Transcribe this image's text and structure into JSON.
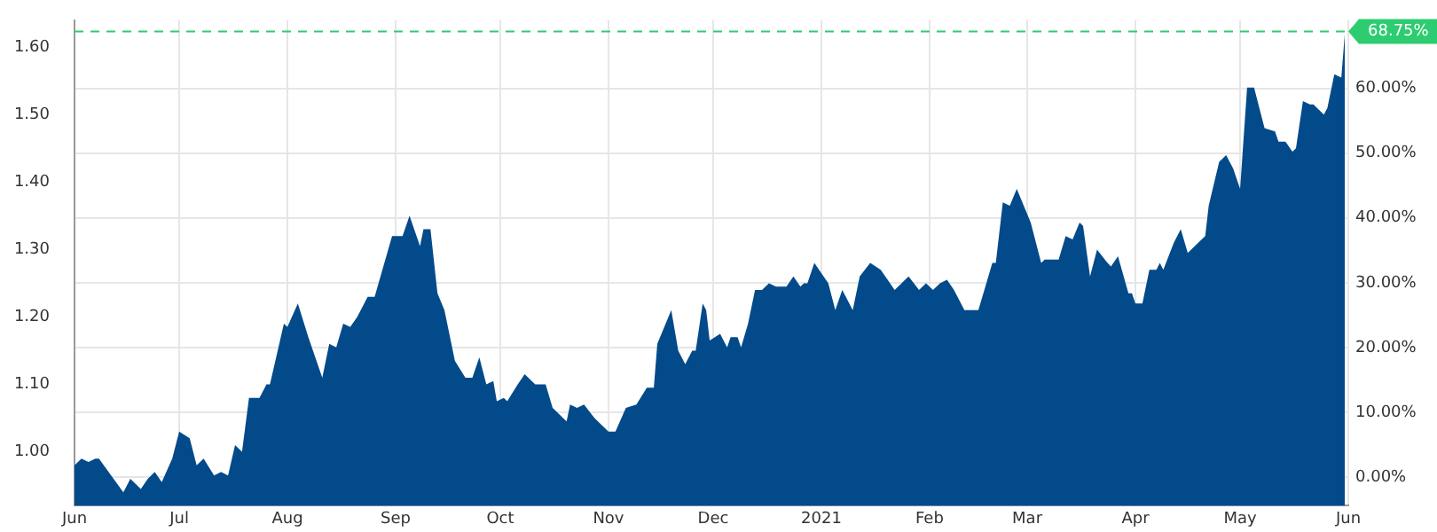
{
  "chart_data": {
    "type": "area",
    "x": [
      "2020-06-01",
      "2020-06-03",
      "2020-06-05",
      "2020-06-07",
      "2020-06-08",
      "2020-06-15",
      "2020-06-17",
      "2020-06-20",
      "2020-06-22",
      "2020-06-24",
      "2020-06-26",
      "2020-06-29",
      "2020-07-01",
      "2020-07-04",
      "2020-07-06",
      "2020-07-08",
      "2020-07-11",
      "2020-07-13",
      "2020-07-15",
      "2020-07-17",
      "2020-07-19",
      "2020-07-21",
      "2020-07-24",
      "2020-07-26",
      "2020-07-27",
      "2020-07-31",
      "2020-08-01",
      "2020-08-04",
      "2020-08-07",
      "2020-08-11",
      "2020-08-13",
      "2020-08-15",
      "2020-08-17",
      "2020-08-19",
      "2020-08-21",
      "2020-08-24",
      "2020-08-26",
      "2020-08-31",
      "2020-09-03",
      "2020-09-05",
      "2020-09-08",
      "2020-09-09",
      "2020-09-11",
      "2020-09-13",
      "2020-09-15",
      "2020-09-18",
      "2020-09-21",
      "2020-09-23",
      "2020-09-25",
      "2020-09-27",
      "2020-09-29",
      "2020-09-30",
      "2020-10-02",
      "2020-10-03",
      "2020-10-06",
      "2020-10-08",
      "2020-10-11",
      "2020-10-14",
      "2020-10-16",
      "2020-10-20",
      "2020-10-21",
      "2020-10-23",
      "2020-10-25",
      "2020-10-28",
      "2020-11-01",
      "2020-11-03",
      "2020-11-06",
      "2020-11-09",
      "2020-11-12",
      "2020-11-14",
      "2020-11-15",
      "2020-11-19",
      "2020-11-21",
      "2020-11-23",
      "2020-11-25",
      "2020-11-26",
      "2020-11-28",
      "2020-11-29",
      "2020-11-30",
      "2020-12-03",
      "2020-12-05",
      "2020-12-06",
      "2020-12-08",
      "2020-12-09",
      "2020-12-11",
      "2020-12-13",
      "2020-12-15",
      "2020-12-17",
      "2020-12-19",
      "2020-12-22",
      "2020-12-24",
      "2020-12-26",
      "2020-12-27",
      "2020-12-28",
      "2020-12-30",
      "2021-01-03",
      "2021-01-05",
      "2021-01-07",
      "2021-01-10",
      "2021-01-12",
      "2021-01-15",
      "2021-01-18",
      "2021-01-20",
      "2021-01-22",
      "2021-01-26",
      "2021-01-29",
      "2021-01-31",
      "2021-02-02",
      "2021-02-04",
      "2021-02-06",
      "2021-02-08",
      "2021-02-11",
      "2021-02-14",
      "2021-02-15",
      "2021-02-17",
      "2021-02-19",
      "2021-02-20",
      "2021-02-22",
      "2021-02-24",
      "2021-02-26",
      "2021-03-02",
      "2021-03-05",
      "2021-03-06",
      "2021-03-10",
      "2021-03-12",
      "2021-03-14",
      "2021-03-16",
      "2021-03-17",
      "2021-03-19",
      "2021-03-21",
      "2021-03-24",
      "2021-03-25",
      "2021-03-27",
      "2021-03-30",
      "2021-03-31",
      "2021-04-01",
      "2021-04-03",
      "2021-04-05",
      "2021-04-07",
      "2021-04-08",
      "2021-04-09",
      "2021-04-12",
      "2021-04-14",
      "2021-04-16",
      "2021-04-19",
      "2021-04-21",
      "2021-04-22",
      "2021-04-25",
      "2021-04-27",
      "2021-04-29",
      "2021-05-01",
      "2021-05-03",
      "2021-05-05",
      "2021-05-08",
      "2021-05-11",
      "2021-05-12",
      "2021-05-14",
      "2021-05-16",
      "2021-05-17",
      "2021-05-19",
      "2021-05-21",
      "2021-05-22",
      "2021-05-25",
      "2021-05-26",
      "2021-05-28",
      "2021-05-30",
      "2021-05-31"
    ],
    "series": [
      {
        "color": "#034a8a",
        "values": [
          0.98,
          0.99,
          0.985,
          0.99,
          0.99,
          0.94,
          0.96,
          0.945,
          0.96,
          0.97,
          0.955,
          0.99,
          1.03,
          1.02,
          0.98,
          0.99,
          0.965,
          0.97,
          0.965,
          1.01,
          1.0,
          1.08,
          1.08,
          1.1,
          1.1,
          1.19,
          1.185,
          1.22,
          1.17,
          1.11,
          1.16,
          1.155,
          1.19,
          1.185,
          1.2,
          1.23,
          1.23,
          1.32,
          1.32,
          1.35,
          1.305,
          1.33,
          1.33,
          1.235,
          1.21,
          1.135,
          1.11,
          1.11,
          1.14,
          1.1,
          1.105,
          1.075,
          1.08,
          1.075,
          1.1,
          1.115,
          1.1,
          1.1,
          1.065,
          1.045,
          1.07,
          1.065,
          1.07,
          1.05,
          1.03,
          1.03,
          1.065,
          1.07,
          1.095,
          1.095,
          1.16,
          1.21,
          1.15,
          1.13,
          1.15,
          1.15,
          1.22,
          1.21,
          1.165,
          1.175,
          1.155,
          1.17,
          1.17,
          1.155,
          1.19,
          1.24,
          1.24,
          1.25,
          1.245,
          1.245,
          1.26,
          1.245,
          1.25,
          1.25,
          1.28,
          1.25,
          1.21,
          1.24,
          1.21,
          1.26,
          1.28,
          1.27,
          1.255,
          1.24,
          1.26,
          1.24,
          1.25,
          1.24,
          1.25,
          1.255,
          1.24,
          1.21,
          1.21,
          1.21,
          1.245,
          1.28,
          1.28,
          1.37,
          1.365,
          1.39,
          1.34,
          1.28,
          1.285,
          1.285,
          1.32,
          1.315,
          1.34,
          1.335,
          1.26,
          1.3,
          1.28,
          1.275,
          1.29,
          1.235,
          1.235,
          1.22,
          1.22,
          1.27,
          1.27,
          1.28,
          1.27,
          1.31,
          1.33,
          1.295,
          1.31,
          1.32,
          1.365,
          1.43,
          1.44,
          1.42,
          1.39,
          1.54,
          1.54,
          1.48,
          1.475,
          1.46,
          1.46,
          1.445,
          1.45,
          1.52,
          1.515,
          1.515,
          1.5,
          1.51,
          1.56,
          1.555,
          1.62
        ]
      }
    ],
    "xlim": [
      "2020-06-01",
      "2021-06-01"
    ],
    "xticks": [
      {
        "value": "2020-06-01",
        "label": "Jun"
      },
      {
        "value": "2020-07-01",
        "label": "Jul"
      },
      {
        "value": "2020-08-01",
        "label": "Aug"
      },
      {
        "value": "2020-09-01",
        "label": "Sep"
      },
      {
        "value": "2020-10-01",
        "label": "Oct"
      },
      {
        "value": "2020-11-01",
        "label": "Nov"
      },
      {
        "value": "2020-12-01",
        "label": "Dec"
      },
      {
        "value": "2021-01-01",
        "label": "2021"
      },
      {
        "value": "2021-02-01",
        "label": "Feb"
      },
      {
        "value": "2021-03-01",
        "label": "Mar"
      },
      {
        "value": "2021-04-01",
        "label": "Apr"
      },
      {
        "value": "2021-05-01",
        "label": "May"
      },
      {
        "value": "2021-06-01",
        "label": "Jun"
      }
    ],
    "ylim": [
      0.92,
      1.64
    ],
    "yticks": [
      {
        "value": 1.0,
        "label": "1.00"
      },
      {
        "value": 1.1,
        "label": "1.10"
      },
      {
        "value": 1.2,
        "label": "1.20"
      },
      {
        "value": 1.3,
        "label": "1.30"
      },
      {
        "value": 1.4,
        "label": "1.40"
      },
      {
        "value": 1.5,
        "label": "1.50"
      },
      {
        "value": 1.6,
        "label": "1.60"
      }
    ],
    "y2lim": [
      -4.4,
      70.5
    ],
    "y2ticks": [
      {
        "value": 0,
        "label": "0.00%"
      },
      {
        "value": 10,
        "label": "10.00%"
      },
      {
        "value": 20,
        "label": "20.00%"
      },
      {
        "value": 30,
        "label": "30.00%"
      },
      {
        "value": 40,
        "label": "40.00%"
      },
      {
        "value": 50,
        "label": "50.00%"
      },
      {
        "value": 60,
        "label": "60.00%"
      }
    ],
    "ref_lines": [
      {
        "axis": "y2",
        "value": 68.75,
        "label": "68.75%",
        "color": "#2ecc71",
        "line_style": "dashed"
      }
    ],
    "grid": true,
    "legend": false
  }
}
